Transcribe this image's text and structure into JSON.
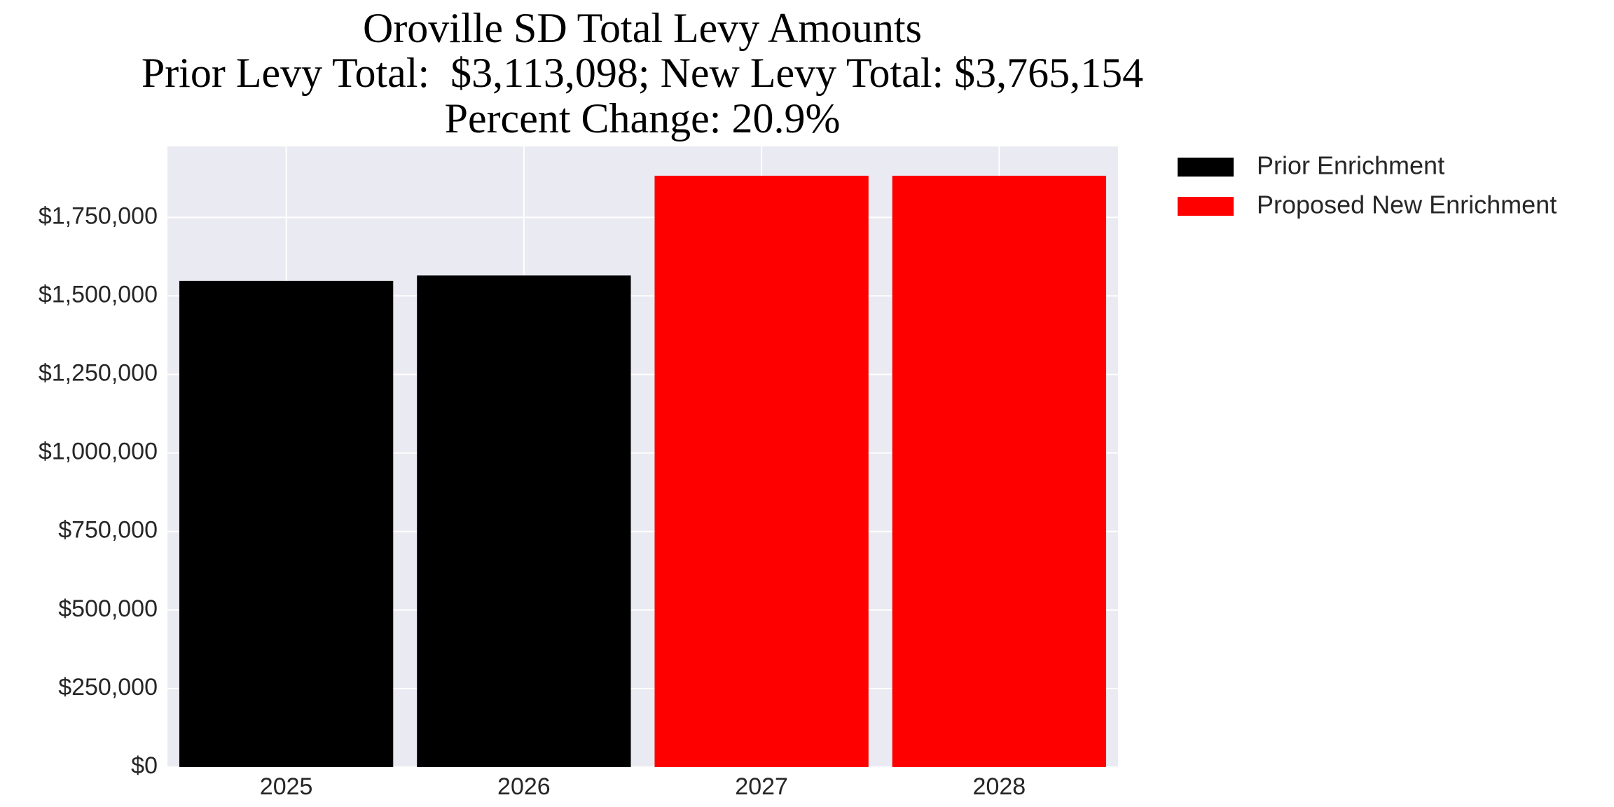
{
  "chart_data": {
    "type": "bar",
    "title": "Oroville SD Total Levy Amounts",
    "subtitle": [
      "Prior Levy Total:  $3,113,098; New Levy Total: $3,765,154",
      "Percent Change: 20.9%"
    ],
    "categories": [
      "2025",
      "2026",
      "2027",
      "2028"
    ],
    "series": [
      {
        "name": "Prior Enrichment",
        "color": "#000000",
        "values": [
          1548000,
          1565000,
          null,
          null
        ]
      },
      {
        "name": "Proposed New Enrichment",
        "color": "#ff0000",
        "values": [
          null,
          null,
          1882577,
          1882577
        ]
      }
    ],
    "ylim": [
      0,
      1976000
    ],
    "yticks": [
      {
        "value": 0,
        "label": "$0"
      },
      {
        "value": 250000,
        "label": "$250,000"
      },
      {
        "value": 500000,
        "label": "$500,000"
      },
      {
        "value": 750000,
        "label": "$750,000"
      },
      {
        "value": 1000000,
        "label": "$1,000,000"
      },
      {
        "value": 1250000,
        "label": "$1,250,000"
      },
      {
        "value": 1500000,
        "label": "$1,500,000"
      },
      {
        "value": 1750000,
        "label": "$1,750,000"
      }
    ],
    "grid": true,
    "legend": "outside-right"
  }
}
